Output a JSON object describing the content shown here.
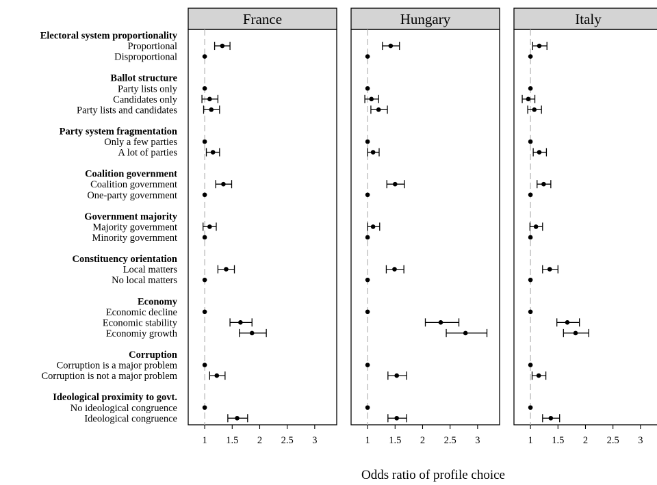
{
  "chart_data": {
    "type": "scatter",
    "xlabel": "Odds ratio of profile choice",
    "x_ticks": [
      "1",
      "1.5",
      "2",
      "2.5",
      "3"
    ],
    "xlim": [
      0.7,
      3.4
    ],
    "reference_line": 1,
    "panels": [
      {
        "name": "France",
        "points": [
          {
            "level": "Proportional",
            "est": 1.32,
            "lo": 1.18,
            "hi": 1.46
          },
          {
            "level": "Disproportional",
            "est": 1.0
          },
          {
            "level": "Party lists only",
            "est": 1.0
          },
          {
            "level": "Candidates only",
            "est": 1.09,
            "lo": 0.95,
            "hi": 1.24
          },
          {
            "level": "Party lists and candidates",
            "est": 1.12,
            "lo": 0.98,
            "hi": 1.27
          },
          {
            "level": "Only a few parties",
            "est": 1.0
          },
          {
            "level": "A lot of parties",
            "est": 1.15,
            "lo": 1.03,
            "hi": 1.27
          },
          {
            "level": "Coalition government",
            "est": 1.34,
            "lo": 1.2,
            "hi": 1.49
          },
          {
            "level": "One-party government",
            "est": 1.0
          },
          {
            "level": "Majority government",
            "est": 1.09,
            "lo": 0.97,
            "hi": 1.21
          },
          {
            "level": "Minority government",
            "est": 1.0
          },
          {
            "level": "Local matters",
            "est": 1.39,
            "lo": 1.24,
            "hi": 1.54
          },
          {
            "level": "No local matters",
            "est": 1.0
          },
          {
            "level": "Economic decline",
            "est": 1.0
          },
          {
            "level": "Economic stability",
            "est": 1.65,
            "lo": 1.46,
            "hi": 1.86
          },
          {
            "level": "Economiy growth",
            "est": 1.86,
            "lo": 1.63,
            "hi": 2.12
          },
          {
            "level": "Corruption is a major problem",
            "est": 1.0
          },
          {
            "level": "Corruption is not a major problem",
            "est": 1.22,
            "lo": 1.09,
            "hi": 1.37
          },
          {
            "level": "No ideological congruence",
            "est": 1.0
          },
          {
            "level": "Ideological congruence",
            "est": 1.59,
            "lo": 1.42,
            "hi": 1.78
          }
        ]
      },
      {
        "name": "Hungary",
        "points": [
          {
            "level": "Proportional",
            "est": 1.42,
            "lo": 1.27,
            "hi": 1.58
          },
          {
            "level": "Disproportional",
            "est": 1.0
          },
          {
            "level": "Party lists only",
            "est": 1.0
          },
          {
            "level": "Candidates only",
            "est": 1.07,
            "lo": 0.95,
            "hi": 1.2
          },
          {
            "level": "Party lists and candidates",
            "est": 1.2,
            "lo": 1.06,
            "hi": 1.36
          },
          {
            "level": "Only a few parties",
            "est": 1.0
          },
          {
            "level": "A lot of parties",
            "est": 1.1,
            "lo": 1.0,
            "hi": 1.21
          },
          {
            "level": "Coalition government",
            "est": 1.5,
            "lo": 1.35,
            "hi": 1.67
          },
          {
            "level": "One-party government",
            "est": 1.0
          },
          {
            "level": "Majority government",
            "est": 1.1,
            "lo": 1.0,
            "hi": 1.22
          },
          {
            "level": "Minority government",
            "est": 1.0
          },
          {
            "level": "Local matters",
            "est": 1.49,
            "lo": 1.34,
            "hi": 1.66
          },
          {
            "level": "No local matters",
            "est": 1.0
          },
          {
            "level": "Economic decline",
            "est": 1.0
          },
          {
            "level": "Economic stability",
            "est": 2.33,
            "lo": 2.05,
            "hi": 2.66
          },
          {
            "level": "Economiy growth",
            "est": 2.78,
            "lo": 2.43,
            "hi": 3.17
          },
          {
            "level": "Corruption is a major problem",
            "est": 1.0
          },
          {
            "level": "Corruption is not a major problem",
            "est": 1.53,
            "lo": 1.37,
            "hi": 1.71
          },
          {
            "level": "No ideological congruence",
            "est": 1.0
          },
          {
            "level": "Ideological congruence",
            "est": 1.53,
            "lo": 1.37,
            "hi": 1.71
          }
        ]
      },
      {
        "name": "Italy",
        "points": [
          {
            "level": "Proportional",
            "est": 1.16,
            "lo": 1.04,
            "hi": 1.3
          },
          {
            "level": "Disproportional",
            "est": 1.0
          },
          {
            "level": "Party lists only",
            "est": 1.0
          },
          {
            "level": "Candidates only",
            "est": 0.96,
            "lo": 0.85,
            "hi": 1.08
          },
          {
            "level": "Party lists and candidates",
            "est": 1.07,
            "lo": 0.95,
            "hi": 1.2
          },
          {
            "level": "Only a few parties",
            "est": 1.0
          },
          {
            "level": "A lot of parties",
            "est": 1.16,
            "lo": 1.05,
            "hi": 1.29
          },
          {
            "level": "Coalition government",
            "est": 1.24,
            "lo": 1.12,
            "hi": 1.37
          },
          {
            "level": "One-party government",
            "est": 1.0
          },
          {
            "level": "Majority government",
            "est": 1.1,
            "lo": 0.99,
            "hi": 1.22
          },
          {
            "level": "Minority government",
            "est": 1.0
          },
          {
            "level": "Local matters",
            "est": 1.35,
            "lo": 1.22,
            "hi": 1.5
          },
          {
            "level": "No local matters",
            "est": 1.0
          },
          {
            "level": "Economic decline",
            "est": 1.0
          },
          {
            "level": "Economic stability",
            "est": 1.67,
            "lo": 1.48,
            "hi": 1.89
          },
          {
            "level": "Economiy growth",
            "est": 1.82,
            "lo": 1.6,
            "hi": 2.06
          },
          {
            "level": "Corruption is a major problem",
            "est": 1.0
          },
          {
            "level": "Corruption is not a major problem",
            "est": 1.15,
            "lo": 1.03,
            "hi": 1.28
          },
          {
            "level": "No ideological congruence",
            "est": 1.0
          },
          {
            "level": "Ideological congruence",
            "est": 1.37,
            "lo": 1.22,
            "hi": 1.53
          }
        ]
      }
    ],
    "groups": [
      {
        "title": "Electoral system proportionality",
        "levels": [
          "Proportional",
          "Disproportional"
        ]
      },
      {
        "title": "Ballot structure",
        "levels": [
          "Party lists only",
          "Candidates only",
          "Party lists and candidates"
        ]
      },
      {
        "title": "Party system fragmentation",
        "levels": [
          "Only a few parties",
          "A lot of parties"
        ]
      },
      {
        "title": "Coalition government",
        "levels": [
          "Coalition government",
          "One-party government"
        ]
      },
      {
        "title": "Government majority",
        "levels": [
          "Majority government",
          "Minority government"
        ]
      },
      {
        "title": "Constituency orientation",
        "levels": [
          "Local matters",
          "No local matters"
        ]
      },
      {
        "title": "Economy",
        "levels": [
          "Economic decline",
          "Economic stability",
          "Economiy growth"
        ]
      },
      {
        "title": "Corruption",
        "levels": [
          "Corruption is a major problem",
          "Corruption is not a major problem"
        ]
      },
      {
        "title": "Ideological proximity to govt.",
        "levels": [
          "No ideological congruence",
          "Ideological congruence"
        ]
      }
    ]
  }
}
